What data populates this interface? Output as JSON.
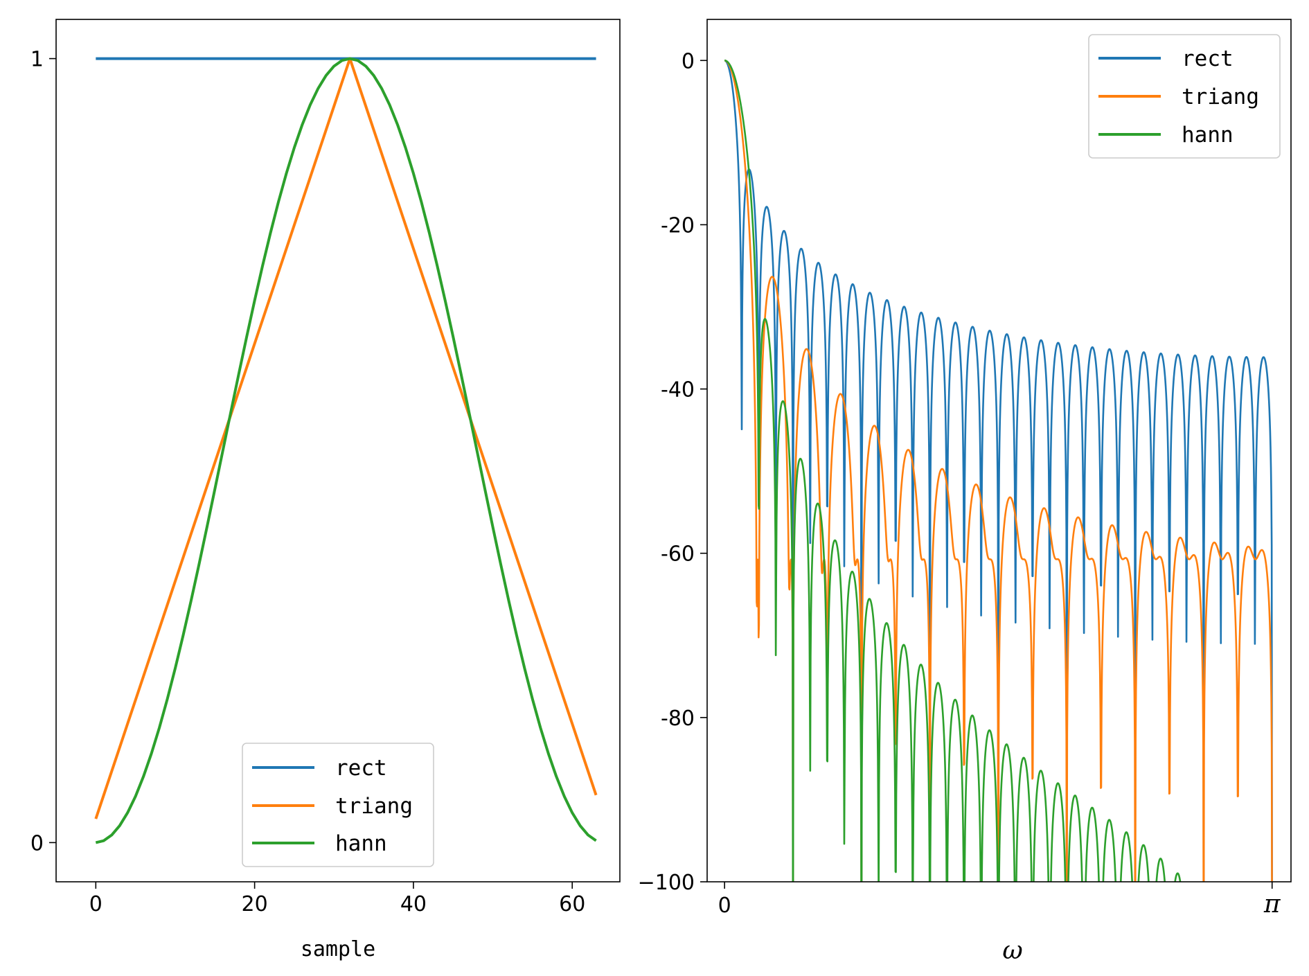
{
  "chart_data": [
    {
      "type": "line",
      "title": "",
      "xlabel": "sample",
      "ylabel": "",
      "xlim": [
        -5,
        66
      ],
      "ylim": [
        -0.05,
        1.05
      ],
      "xticks": [
        0,
        20,
        40,
        60
      ],
      "xtick_labels": [
        "0",
        "20",
        "40",
        "60"
      ],
      "yticks": [
        0,
        1
      ],
      "ytick_labels": [
        "0",
        "1"
      ],
      "legend_position": "bottom-center",
      "series": [
        {
          "name": "rect",
          "color": "#1f77b4",
          "formula": "w[n] = 1",
          "x": [
            0,
            63
          ],
          "y": [
            1,
            1
          ]
        },
        {
          "name": "triang",
          "color": "#ff7f0e",
          "formula": "w[n] = 1 - |n - 32| / 33, n = 0..63",
          "x": [
            0,
            32,
            63
          ],
          "y": [
            0.0303,
            1.0,
            0.0606
          ]
        },
        {
          "name": "hann",
          "color": "#2ca02c",
          "formula": "w[n] = 0.5 - 0.5 cos(2 pi n / 64), n = 0..63",
          "x": [
            0,
            8,
            16,
            24,
            32,
            40,
            48,
            56,
            63
          ],
          "y": [
            0.0,
            0.1464,
            0.5,
            0.8536,
            1.0,
            0.8536,
            0.5,
            0.1464,
            0.0024
          ]
        }
      ]
    },
    {
      "type": "line",
      "title": "",
      "xlabel": "ω",
      "ylabel": "",
      "xlim": [
        -0.1,
        3.25
      ],
      "ylim": [
        -100,
        5
      ],
      "xticks": [
        0,
        3.14159
      ],
      "xtick_labels": [
        "0",
        "π"
      ],
      "yticks": [
        0,
        -20,
        -40,
        -60,
        -80,
        -100
      ],
      "ytick_labels": [
        "0",
        "-20",
        "-40",
        "-60",
        "-80",
        "−100"
      ],
      "legend_position": "top-right",
      "series": [
        {
          "name": "rect",
          "color": "#1f77b4",
          "formula": "20 log10 |W(e^jω)| / W(0) of 64-point rectangular window",
          "first_null": 0.0982,
          "first_sidelobe_peak": -13.3
        },
        {
          "name": "triang",
          "color": "#ff7f0e",
          "formula": "20 log10 |W(e^jω)| / W(0) of 64-point triangular window",
          "first_null": 0.19,
          "first_sidelobe_peak": -26.5
        },
        {
          "name": "hann",
          "color": "#2ca02c",
          "formula": "20 log10 |W(e^jω)| / W(0) of 64-point Hann window",
          "first_null": 0.19,
          "first_sidelobe_peak": -31.5
        }
      ]
    }
  ]
}
